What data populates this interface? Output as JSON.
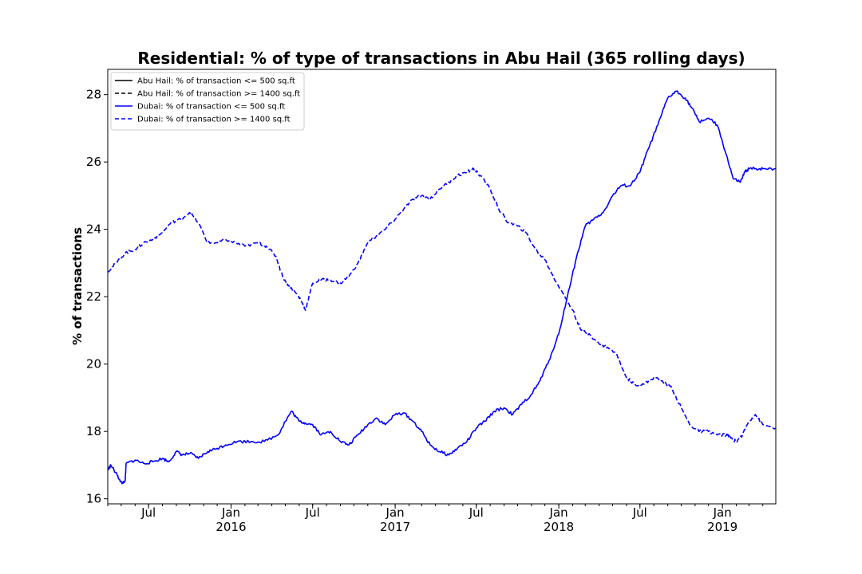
{
  "chart_data": {
    "type": "line",
    "title": "Residential: % of type of transactions in Abu Hail (365 rolling days)",
    "xlabel": "",
    "ylabel": "% of transactions",
    "xlim": [
      "2015-04-01",
      "2019-04-30"
    ],
    "ylim": [
      15.85,
      28.75
    ],
    "grid": false,
    "legend_position": "top-left",
    "y_ticks": [
      16,
      18,
      20,
      22,
      24,
      26,
      28
    ],
    "x_ticks": [
      {
        "date": "2015-07-01",
        "label": "Jul",
        "sublabel": ""
      },
      {
        "date": "2016-01-01",
        "label": "Jan",
        "sublabel": "2016"
      },
      {
        "date": "2016-07-01",
        "label": "Jul",
        "sublabel": ""
      },
      {
        "date": "2017-01-01",
        "label": "Jan",
        "sublabel": "2017"
      },
      {
        "date": "2017-07-01",
        "label": "Jul",
        "sublabel": ""
      },
      {
        "date": "2018-01-01",
        "label": "Jan",
        "sublabel": "2018"
      },
      {
        "date": "2018-07-01",
        "label": "Jul",
        "sublabel": ""
      },
      {
        "date": "2019-01-01",
        "label": "Jan",
        "sublabel": "2019"
      }
    ],
    "series": [
      {
        "name": "Abu Hail: % of transaction <= 500 sq.ft",
        "color": "#000000",
        "dash": "solid",
        "x": [],
        "y": []
      },
      {
        "name": "Abu Hail: % of transaction >= 1400 sq.ft",
        "color": "#000000",
        "dash": "dashed",
        "x": [],
        "y": []
      },
      {
        "name": "Dubai: % of transaction <= 500 sq.ft",
        "color": "#0000ff",
        "dash": "solid",
        "x": [
          "2015-04-01",
          "2015-04-08",
          "2015-04-22",
          "2015-05-03",
          "2015-05-10",
          "2015-05-12",
          "2015-06-01",
          "2015-06-20",
          "2015-07-10",
          "2015-08-01",
          "2015-08-15",
          "2015-09-01",
          "2015-09-15",
          "2015-10-01",
          "2015-10-20",
          "2015-11-10",
          "2015-12-01",
          "2015-12-20",
          "2016-01-15",
          "2016-02-15",
          "2016-03-15",
          "2016-04-15",
          "2016-05-01",
          "2016-05-15",
          "2016-06-01",
          "2016-06-15",
          "2016-07-01",
          "2016-07-20",
          "2016-08-10",
          "2016-09-01",
          "2016-09-20",
          "2016-10-10",
          "2016-11-01",
          "2016-11-20",
          "2016-12-10",
          "2017-01-01",
          "2017-01-20",
          "2017-02-10",
          "2017-03-01",
          "2017-03-20",
          "2017-04-10",
          "2017-05-01",
          "2017-05-20",
          "2017-06-10",
          "2017-07-01",
          "2017-07-20",
          "2017-08-10",
          "2017-09-01",
          "2017-09-20",
          "2017-10-10",
          "2017-11-01",
          "2017-11-20",
          "2017-12-10",
          "2018-01-01",
          "2018-01-20",
          "2018-02-10",
          "2018-03-01",
          "2018-03-20",
          "2018-04-10",
          "2018-05-01",
          "2018-05-20",
          "2018-06-10",
          "2018-07-01",
          "2018-07-20",
          "2018-08-10",
          "2018-09-01",
          "2018-09-20",
          "2018-10-10",
          "2018-10-25",
          "2018-11-10",
          "2018-12-01",
          "2018-12-20",
          "2019-01-10",
          "2019-01-25",
          "2019-02-10",
          "2019-02-20",
          "2019-03-01",
          "2019-03-15",
          "2019-04-01",
          "2019-04-30"
        ],
        "y": [
          16.85,
          17.0,
          16.7,
          16.45,
          16.55,
          17.05,
          17.15,
          17.05,
          17.1,
          17.2,
          17.1,
          17.4,
          17.3,
          17.35,
          17.2,
          17.4,
          17.5,
          17.6,
          17.7,
          17.7,
          17.7,
          17.9,
          18.3,
          18.6,
          18.3,
          18.25,
          18.2,
          17.9,
          18.0,
          17.7,
          17.6,
          17.9,
          18.2,
          18.4,
          18.2,
          18.5,
          18.55,
          18.3,
          18.0,
          17.6,
          17.4,
          17.3,
          17.5,
          17.7,
          18.1,
          18.3,
          18.6,
          18.7,
          18.5,
          18.8,
          19.1,
          19.5,
          20.1,
          20.9,
          22.0,
          23.2,
          24.1,
          24.3,
          24.5,
          25.0,
          25.3,
          25.3,
          25.7,
          26.4,
          27.1,
          27.9,
          28.1,
          27.9,
          27.6,
          27.2,
          27.3,
          27.1,
          26.2,
          25.5,
          25.4,
          25.7,
          25.8,
          25.8,
          25.8,
          25.8
        ]
      },
      {
        "name": "Dubai: % of transaction >= 1400 sq.ft",
        "color": "#0000ff",
        "dash": "dashed",
        "x": [
          "2015-04-01",
          "2015-04-20",
          "2015-05-10",
          "2015-06-01",
          "2015-06-20",
          "2015-07-10",
          "2015-08-01",
          "2015-08-20",
          "2015-09-10",
          "2015-10-01",
          "2015-10-20",
          "2015-11-10",
          "2015-12-01",
          "2015-12-20",
          "2016-01-10",
          "2016-02-01",
          "2016-03-01",
          "2016-03-20",
          "2016-04-10",
          "2016-04-25",
          "2016-05-10",
          "2016-05-25",
          "2016-06-05",
          "2016-06-15",
          "2016-07-01",
          "2016-07-20",
          "2016-08-10",
          "2016-09-01",
          "2016-09-20",
          "2016-10-10",
          "2016-11-01",
          "2016-11-20",
          "2016-12-10",
          "2017-01-01",
          "2017-01-20",
          "2017-02-10",
          "2017-03-01",
          "2017-03-20",
          "2017-04-10",
          "2017-05-01",
          "2017-05-20",
          "2017-06-10",
          "2017-06-25",
          "2017-07-10",
          "2017-08-01",
          "2017-08-20",
          "2017-09-10",
          "2017-10-01",
          "2017-10-20",
          "2017-11-10",
          "2017-12-01",
          "2017-12-20",
          "2018-01-10",
          "2018-02-01",
          "2018-02-20",
          "2018-03-10",
          "2018-04-01",
          "2018-04-20",
          "2018-05-10",
          "2018-06-01",
          "2018-06-20",
          "2018-07-10",
          "2018-08-01",
          "2018-08-20",
          "2018-09-10",
          "2018-10-01",
          "2018-10-20",
          "2018-11-10",
          "2018-12-01",
          "2018-12-20",
          "2019-01-10",
          "2019-01-20",
          "2019-02-01",
          "2019-02-15",
          "2019-03-01",
          "2019-03-15",
          "2019-04-01",
          "2019-04-30"
        ],
        "y": [
          22.75,
          23.0,
          23.3,
          23.4,
          23.6,
          23.7,
          23.9,
          24.2,
          24.3,
          24.5,
          24.2,
          23.6,
          23.6,
          23.7,
          23.6,
          23.5,
          23.6,
          23.5,
          23.2,
          22.6,
          22.3,
          22.1,
          21.9,
          21.6,
          22.4,
          22.5,
          22.5,
          22.4,
          22.6,
          23.0,
          23.6,
          23.8,
          24.0,
          24.3,
          24.6,
          24.9,
          25.0,
          24.9,
          25.2,
          25.4,
          25.6,
          25.7,
          25.8,
          25.6,
          25.2,
          24.6,
          24.2,
          24.1,
          23.9,
          23.4,
          23.1,
          22.6,
          22.1,
          21.6,
          21.0,
          20.9,
          20.6,
          20.5,
          20.3,
          19.6,
          19.4,
          19.4,
          19.6,
          19.5,
          19.3,
          18.7,
          18.2,
          18.0,
          18.0,
          17.9,
          17.9,
          17.8,
          17.7,
          17.9,
          18.3,
          18.5,
          18.2,
          18.1
        ]
      }
    ]
  }
}
